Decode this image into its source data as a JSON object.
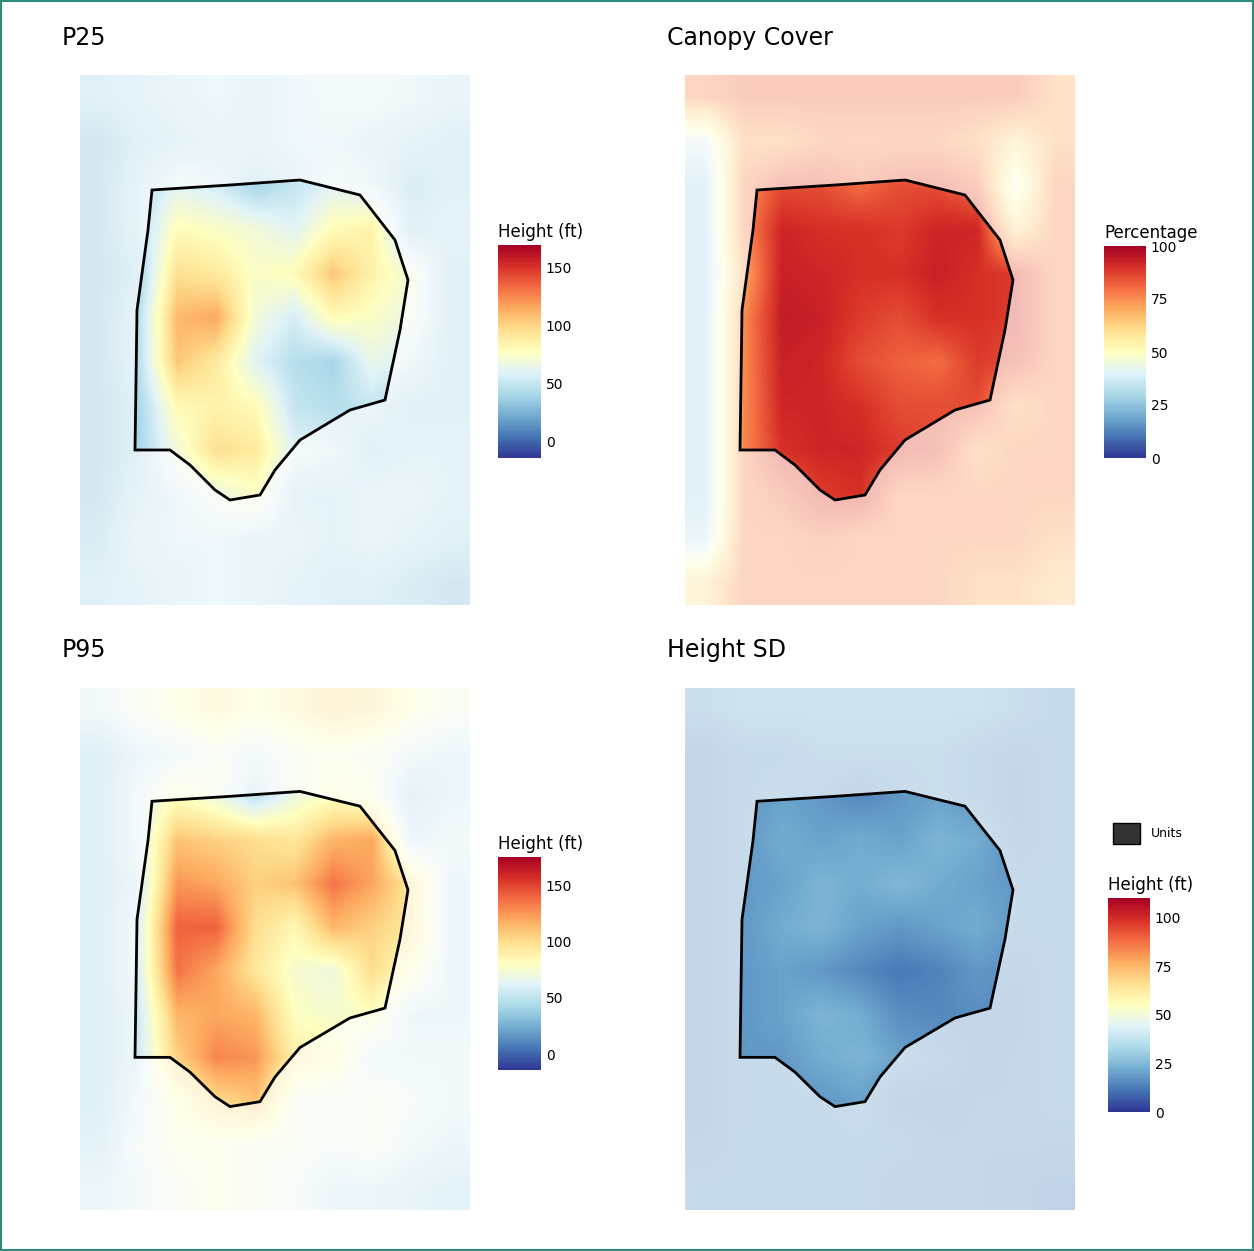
{
  "chart_data": [
    {
      "type": "heatmap",
      "title": "P25",
      "tick_labels": false,
      "colorbar": {
        "label": "Height (ft)",
        "range": [
          -14,
          169
        ],
        "ticks": [
          0,
          50,
          100,
          150
        ]
      },
      "cells": [
        [
          40,
          45,
          50,
          55,
          50,
          55,
          60,
          60,
          55,
          50
        ],
        [
          30,
          40,
          45,
          50,
          50,
          55,
          55,
          50,
          45,
          40
        ],
        [
          30,
          45,
          60,
          55,
          40,
          50,
          60,
          55,
          35,
          40
        ],
        [
          30,
          45,
          80,
          75,
          70,
          60,
          80,
          85,
          40,
          45
        ],
        [
          30,
          40,
          95,
          90,
          75,
          80,
          105,
          85,
          70,
          40
        ],
        [
          30,
          45,
          110,
          115,
          70,
          55,
          80,
          75,
          65,
          40
        ],
        [
          30,
          45,
          105,
          90,
          60,
          45,
          40,
          65,
          55,
          40
        ],
        [
          30,
          40,
          80,
          85,
          80,
          50,
          45,
          50,
          40,
          40
        ],
        [
          30,
          40,
          70,
          95,
          90,
          60,
          55,
          40,
          45,
          45
        ],
        [
          30,
          45,
          55,
          65,
          75,
          45,
          45,
          50,
          50,
          45
        ],
        [
          35,
          50,
          55,
          55,
          50,
          50,
          45,
          50,
          45,
          40
        ],
        [
          40,
          45,
          50,
          55,
          50,
          45,
          40,
          40,
          35,
          30
        ]
      ]
    },
    {
      "type": "heatmap",
      "title": "Canopy Cover",
      "tick_labels": false,
      "colorbar": {
        "label": "Percentage",
        "range": [
          0,
          100
        ],
        "ticks": [
          0,
          25,
          50,
          75,
          100
        ]
      },
      "cells": [
        [
          75,
          80,
          80,
          80,
          80,
          80,
          80,
          80,
          80,
          70
        ],
        [
          40,
          70,
          70,
          75,
          75,
          75,
          75,
          70,
          60,
          70
        ],
        [
          30,
          75,
          85,
          85,
          80,
          85,
          85,
          80,
          45,
          75
        ],
        [
          30,
          75,
          92,
          90,
          90,
          88,
          92,
          92,
          60,
          75
        ],
        [
          30,
          70,
          93,
          92,
          90,
          90,
          93,
          90,
          88,
          75
        ],
        [
          30,
          75,
          94,
          93,
          88,
          85,
          90,
          90,
          88,
          75
        ],
        [
          30,
          75,
          93,
          92,
          85,
          82,
          80,
          88,
          85,
          75
        ],
        [
          30,
          75,
          92,
          92,
          90,
          85,
          85,
          85,
          70,
          75
        ],
        [
          30,
          75,
          90,
          92,
          92,
          88,
          85,
          70,
          75,
          75
        ],
        [
          30,
          75,
          80,
          88,
          90,
          75,
          75,
          75,
          75,
          75
        ],
        [
          35,
          75,
          75,
          78,
          75,
          75,
          75,
          75,
          75,
          70
        ],
        [
          60,
          75,
          75,
          75,
          75,
          75,
          75,
          70,
          70,
          65
        ]
      ]
    },
    {
      "type": "heatmap",
      "title": "P95",
      "tick_labels": false,
      "colorbar": {
        "label": "Height (ft)",
        "range": [
          -14,
          175
        ],
        "ticks": [
          0,
          50,
          100,
          150
        ]
      },
      "cells": [
        [
          60,
          70,
          80,
          90,
          80,
          90,
          100,
          95,
          80,
          70
        ],
        [
          40,
          55,
          60,
          70,
          60,
          70,
          75,
          70,
          60,
          55
        ],
        [
          40,
          60,
          80,
          70,
          50,
          70,
          80,
          75,
          45,
          55
        ],
        [
          40,
          60,
          110,
          105,
          100,
          95,
          115,
          120,
          55,
          60
        ],
        [
          40,
          55,
          125,
          120,
          105,
          110,
          135,
          120,
          95,
          55
        ],
        [
          40,
          60,
          140,
          140,
          100,
          85,
          115,
          105,
          95,
          55
        ],
        [
          40,
          60,
          135,
          120,
          95,
          75,
          70,
          100,
          80,
          55
        ],
        [
          40,
          55,
          115,
          120,
          115,
          80,
          75,
          80,
          55,
          55
        ],
        [
          40,
          55,
          105,
          130,
          125,
          90,
          85,
          60,
          60,
          60
        ],
        [
          40,
          60,
          80,
          100,
          110,
          70,
          65,
          70,
          65,
          60
        ],
        [
          45,
          65,
          75,
          75,
          70,
          70,
          65,
          70,
          60,
          55
        ],
        [
          55,
          60,
          70,
          75,
          70,
          65,
          55,
          55,
          50,
          45
        ]
      ]
    },
    {
      "type": "heatmap",
      "title": "Height SD",
      "tick_labels": false,
      "legend": "lower left",
      "series": [
        {
          "name": "Units",
          "color": "#333333"
        }
      ],
      "colorbar": {
        "label": "Height (ft)",
        "range": [
          0,
          110
        ],
        "ticks": [
          0,
          25,
          50,
          75,
          100
        ]
      },
      "cells": [
        [
          20,
          22,
          22,
          22,
          22,
          22,
          22,
          22,
          20,
          18
        ],
        [
          15,
          18,
          18,
          20,
          20,
          20,
          20,
          18,
          16,
          18
        ],
        [
          15,
          18,
          20,
          18,
          15,
          18,
          20,
          18,
          15,
          18
        ],
        [
          15,
          18,
          22,
          20,
          22,
          20,
          24,
          22,
          16,
          18
        ],
        [
          15,
          18,
          20,
          24,
          22,
          25,
          22,
          20,
          18,
          18
        ],
        [
          15,
          18,
          22,
          24,
          20,
          18,
          20,
          22,
          18,
          18
        ],
        [
          15,
          18,
          20,
          18,
          15,
          12,
          14,
          18,
          16,
          18
        ],
        [
          15,
          18,
          20,
          24,
          22,
          16,
          15,
          16,
          15,
          18
        ],
        [
          15,
          18,
          18,
          22,
          24,
          20,
          18,
          15,
          16,
          18
        ],
        [
          15,
          18,
          18,
          18,
          20,
          15,
          15,
          16,
          16,
          18
        ],
        [
          16,
          18,
          18,
          18,
          18,
          18,
          16,
          16,
          16,
          16
        ],
        [
          18,
          18,
          18,
          18,
          18,
          16,
          16,
          16,
          15,
          14
        ]
      ]
    }
  ]
}
